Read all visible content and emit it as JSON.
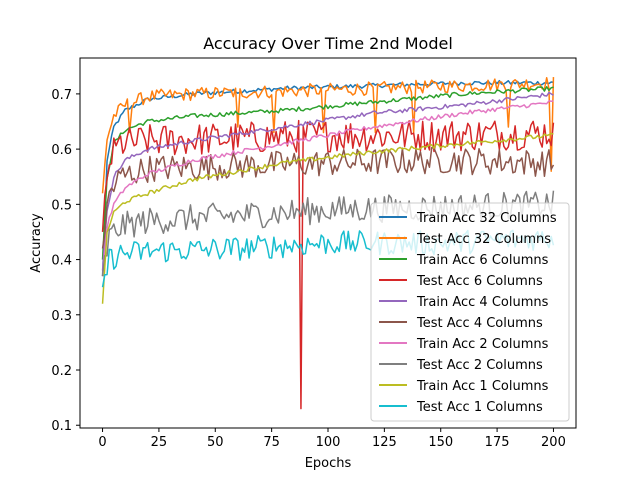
{
  "chart_data": {
    "type": "line",
    "title": "Accuracy Over Time 2nd Model",
    "xlabel": "Epochs",
    "ylabel": "Accuracy",
    "xlim": [
      -10,
      210
    ],
    "ylim": [
      0.095,
      0.765
    ],
    "xticks": [
      0,
      25,
      50,
      75,
      100,
      125,
      150,
      175,
      200
    ],
    "yticks": [
      0.1,
      0.2,
      0.3,
      0.4,
      0.5,
      0.6,
      0.7
    ],
    "grid": false,
    "legend_position": "lower-right",
    "epochs": 200,
    "series": [
      {
        "name": "Train Acc 32 Columns",
        "color": "#1f77b4",
        "key_epochs": [
          0,
          2,
          5,
          10,
          20,
          40,
          80,
          120,
          160,
          200
        ],
        "key_values": [
          0.37,
          0.58,
          0.64,
          0.67,
          0.69,
          0.7,
          0.71,
          0.715,
          0.72,
          0.72
        ],
        "noise": 0.004
      },
      {
        "name": "Test Acc 32 Columns",
        "color": "#ff7f0e",
        "key_epochs": [
          0,
          2,
          5,
          10,
          20,
          40,
          80,
          120,
          160,
          200
        ],
        "key_values": [
          0.52,
          0.62,
          0.66,
          0.68,
          0.695,
          0.7,
          0.705,
          0.71,
          0.715,
          0.72
        ],
        "noise": 0.012,
        "dips": [
          [
            12,
            0.63
          ],
          [
            60,
            0.64
          ],
          [
            76,
            0.63
          ],
          [
            98,
            0.63
          ],
          [
            121,
            0.63
          ],
          [
            138,
            0.63
          ],
          [
            180,
            0.64
          ],
          [
            199,
            0.56
          ]
        ]
      },
      {
        "name": "Train Acc 6 Columns",
        "color": "#2ca02c",
        "key_epochs": [
          0,
          2,
          5,
          10,
          20,
          40,
          80,
          120,
          160,
          200
        ],
        "key_values": [
          0.4,
          0.55,
          0.61,
          0.635,
          0.65,
          0.66,
          0.67,
          0.685,
          0.7,
          0.71
        ],
        "noise": 0.004
      },
      {
        "name": "Test Acc 6 Columns",
        "color": "#d62728",
        "key_epochs": [
          0,
          3,
          8,
          20,
          60,
          100,
          150,
          200
        ],
        "key_values": [
          0.45,
          0.58,
          0.61,
          0.615,
          0.62,
          0.625,
          0.625,
          0.63
        ],
        "noise": 0.03,
        "dips": [
          [
            88,
            0.13
          ]
        ]
      },
      {
        "name": "Train Acc 4 Columns",
        "color": "#9467bd",
        "key_epochs": [
          0,
          2,
          5,
          10,
          20,
          40,
          80,
          120,
          160,
          200
        ],
        "key_values": [
          0.38,
          0.49,
          0.55,
          0.58,
          0.6,
          0.615,
          0.64,
          0.665,
          0.68,
          0.7
        ],
        "noise": 0.004
      },
      {
        "name": "Test Acc 4 Columns",
        "color": "#8c564b",
        "key_epochs": [
          0,
          3,
          8,
          20,
          60,
          100,
          150,
          200
        ],
        "key_values": [
          0.42,
          0.52,
          0.55,
          0.565,
          0.57,
          0.575,
          0.58,
          0.575
        ],
        "noise": 0.025
      },
      {
        "name": "Train Acc 2 Columns",
        "color": "#e377c2",
        "key_epochs": [
          0,
          2,
          5,
          10,
          20,
          40,
          80,
          120,
          160,
          200
        ],
        "key_values": [
          0.37,
          0.46,
          0.5,
          0.53,
          0.555,
          0.58,
          0.61,
          0.64,
          0.665,
          0.685
        ],
        "noise": 0.004
      },
      {
        "name": "Test Acc 2 Columns",
        "color": "#7f7f7f",
        "key_epochs": [
          0,
          3,
          8,
          20,
          60,
          100,
          150,
          200
        ],
        "key_values": [
          0.37,
          0.44,
          0.46,
          0.47,
          0.48,
          0.49,
          0.495,
          0.5
        ],
        "noise": 0.025
      },
      {
        "name": "Train Acc 1 Columns",
        "color": "#bcbd22",
        "key_epochs": [
          0,
          2,
          5,
          10,
          20,
          40,
          80,
          120,
          160,
          200
        ],
        "key_values": [
          0.32,
          0.45,
          0.485,
          0.505,
          0.52,
          0.545,
          0.575,
          0.595,
          0.61,
          0.625
        ],
        "noise": 0.004
      },
      {
        "name": "Test Acc 1 Columns",
        "color": "#17becf",
        "key_epochs": [
          0,
          3,
          8,
          20,
          60,
          100,
          150,
          200
        ],
        "key_values": [
          0.35,
          0.4,
          0.41,
          0.415,
          0.42,
          0.43,
          0.43,
          0.44
        ],
        "noise": 0.022
      }
    ]
  }
}
